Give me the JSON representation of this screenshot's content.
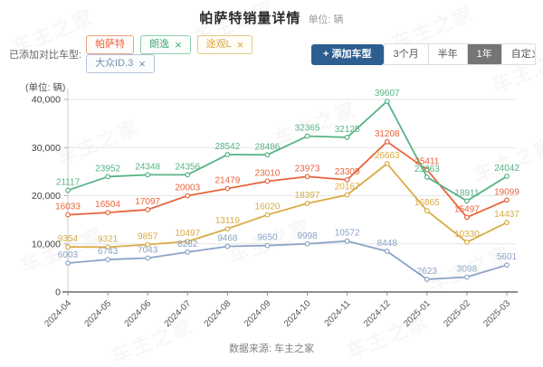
{
  "header": {
    "title": "帕萨特销量详情",
    "unit_label": "单位: 辆"
  },
  "toolbar": {
    "compare_label": "已添加对比车型:",
    "tags": [
      {
        "label": "帕萨特",
        "closable": false,
        "color": "#e8643c",
        "bg": "#fffcfb",
        "border": "#eda182"
      },
      {
        "label": "朗逸",
        "closable": true,
        "color": "#4cab7d",
        "bg": "#fbfefc",
        "border": "#8fd0ae"
      },
      {
        "label": "途观L",
        "closable": true,
        "color": "#d9a53a",
        "bg": "#fffdf8",
        "border": "#e3c883"
      },
      {
        "label": "大众ID.3",
        "closable": true,
        "color": "#7590b3",
        "bg": "#fbfcfe",
        "border": "#b4c4d8"
      }
    ],
    "add_button": "+ 添加车型",
    "periods": [
      {
        "label": "3个月",
        "selected": false
      },
      {
        "label": "半年",
        "selected": false
      },
      {
        "label": "1年",
        "selected": true
      },
      {
        "label": "自定义",
        "selected": false
      }
    ]
  },
  "chart_data": {
    "type": "line",
    "title": "帕萨特销量详情",
    "unit_label": "(单位: 辆)",
    "x": [
      "2024-04",
      "2024-05",
      "2024-06",
      "2024-07",
      "2024-08",
      "2024-09",
      "2024-10",
      "2024-11",
      "2024-12",
      "2025-01",
      "2025-02",
      "2025-03"
    ],
    "series": [
      {
        "name": "帕萨特",
        "color": "#e8643c",
        "values": [
          16033,
          16504,
          17097,
          20003,
          21479,
          23010,
          23973,
          23309,
          31208,
          25411,
          15497,
          19099
        ]
      },
      {
        "name": "朗逸",
        "color": "#57b385",
        "values": [
          21117,
          23952,
          24348,
          24356,
          28542,
          28486,
          32365,
          32125,
          39607,
          23863,
          18911,
          24042
        ]
      },
      {
        "name": "途观L",
        "color": "#d9ab44",
        "values": [
          9354,
          9321,
          9857,
          10497,
          13119,
          16020,
          18397,
          20167,
          26663,
          16865,
          10330,
          14437
        ]
      },
      {
        "name": "大众ID.3",
        "color": "#8ba3c7",
        "values": [
          6003,
          6743,
          7043,
          8282,
          9468,
          9650,
          9998,
          10572,
          8448,
          2623,
          3098,
          5601
        ]
      }
    ],
    "ylim": [
      0,
      40000
    ],
    "yticks": [
      0,
      10000,
      20000,
      30000,
      40000
    ],
    "ytick_labels": [
      "0",
      "10,000",
      "20,000",
      "30,000",
      "40,000"
    ],
    "grid": true,
    "legend_position": "none"
  },
  "footer": {
    "source": "数据来源: 车主之家"
  },
  "watermark": "车主之家"
}
